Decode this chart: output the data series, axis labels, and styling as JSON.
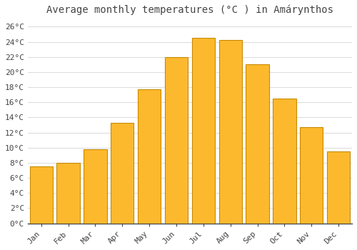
{
  "title": "Average monthly temperatures (°C ) in Amárynthos",
  "months": [
    "Jan",
    "Feb",
    "Mar",
    "Apr",
    "May",
    "Jun",
    "Jul",
    "Aug",
    "Sep",
    "Oct",
    "Nov",
    "Dec"
  ],
  "values": [
    7.5,
    8.0,
    9.8,
    13.3,
    17.7,
    22.0,
    24.5,
    24.2,
    21.0,
    16.5,
    12.7,
    9.5
  ],
  "bar_color": "#FDB92E",
  "bar_edge_color": "#C88A00",
  "background_color": "#FFFFFF",
  "grid_color": "#DDDDDD",
  "text_color": "#444444",
  "ylim": [
    0,
    27
  ],
  "ytick_step": 2,
  "title_fontsize": 10,
  "tick_fontsize": 8,
  "font_family": "monospace"
}
